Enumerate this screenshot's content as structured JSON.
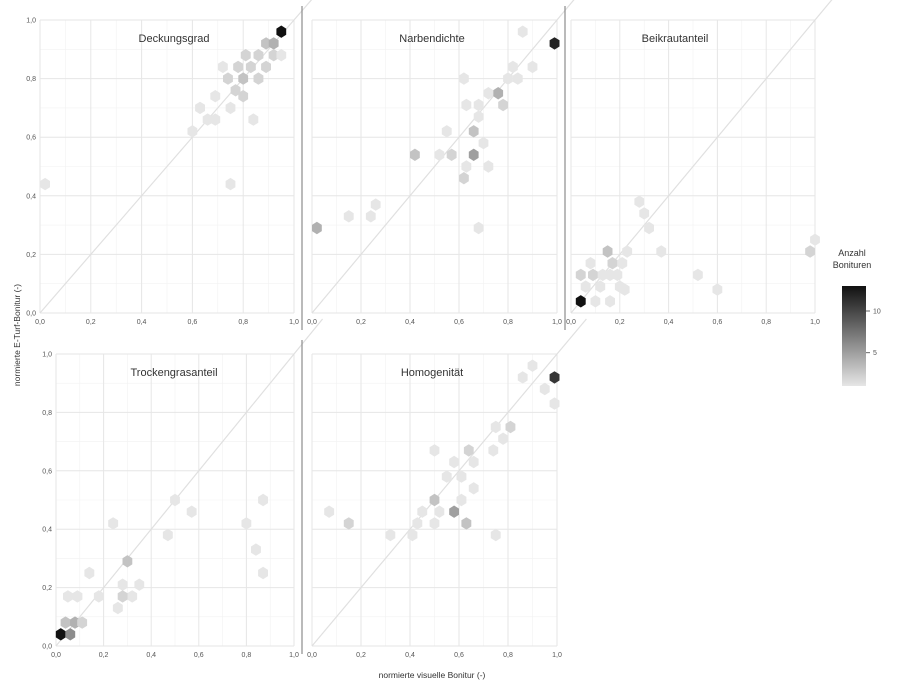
{
  "chart_data": {
    "type": "hexbin",
    "xlabel": "normierte visuelle Bonitur (-)",
    "ylabel": "normierte E-Turf-Bonitur (-)",
    "xlim": [
      0,
      1
    ],
    "ylim": [
      0,
      1
    ],
    "x_ticks": [
      "0,0",
      "0,2",
      "0,4",
      "0,6",
      "0,8",
      "1,0"
    ],
    "y_ticks": [
      "0,0",
      "0,2",
      "0,4",
      "0,6",
      "0,8",
      "1,0"
    ],
    "reference_line": "y = x",
    "legend": {
      "title_line1": "Anzahl",
      "title_line2": "Bonituren",
      "tick_labels": [
        "10",
        "5"
      ],
      "tick_values": [
        10,
        5
      ],
      "min": 1,
      "max": 13,
      "color_low": "#e6e6e6",
      "color_high": "#111111"
    },
    "panels": [
      {
        "title": "Deckungsgrad",
        "points": [
          [
            0.02,
            0.44,
            1
          ],
          [
            0.6,
            0.62,
            1
          ],
          [
            0.63,
            0.7,
            1
          ],
          [
            0.66,
            0.66,
            1
          ],
          [
            0.69,
            0.74,
            1
          ],
          [
            0.69,
            0.66,
            1
          ],
          [
            0.72,
            0.84,
            1
          ],
          [
            0.74,
            0.8,
            2
          ],
          [
            0.75,
            0.7,
            1
          ],
          [
            0.75,
            0.44,
            1
          ],
          [
            0.77,
            0.76,
            2
          ],
          [
            0.78,
            0.84,
            2
          ],
          [
            0.8,
            0.8,
            3
          ],
          [
            0.81,
            0.88,
            2
          ],
          [
            0.8,
            0.74,
            2
          ],
          [
            0.83,
            0.84,
            2
          ],
          [
            0.84,
            0.66,
            1
          ],
          [
            0.86,
            0.88,
            2
          ],
          [
            0.86,
            0.8,
            2
          ],
          [
            0.89,
            0.92,
            3
          ],
          [
            0.89,
            0.84,
            2
          ],
          [
            0.92,
            0.92,
            4
          ],
          [
            0.92,
            0.88,
            2
          ],
          [
            0.95,
            0.88,
            1
          ],
          [
            0.95,
            0.96,
            13
          ]
        ]
      },
      {
        "title": "Narbendichte",
        "points": [
          [
            0.02,
            0.29,
            4
          ],
          [
            0.15,
            0.33,
            1
          ],
          [
            0.24,
            0.33,
            1
          ],
          [
            0.26,
            0.37,
            1
          ],
          [
            0.42,
            0.54,
            3
          ],
          [
            0.52,
            0.54,
            1
          ],
          [
            0.55,
            0.62,
            1
          ],
          [
            0.57,
            0.54,
            2
          ],
          [
            0.62,
            0.46,
            2
          ],
          [
            0.63,
            0.5,
            1
          ],
          [
            0.62,
            0.8,
            1
          ],
          [
            0.63,
            0.71,
            1
          ],
          [
            0.66,
            0.54,
            5
          ],
          [
            0.66,
            0.62,
            3
          ],
          [
            0.68,
            0.71,
            1
          ],
          [
            0.68,
            0.67,
            1
          ],
          [
            0.72,
            0.75,
            1
          ],
          [
            0.76,
            0.75,
            4
          ],
          [
            0.78,
            0.71,
            2
          ],
          [
            0.8,
            0.8,
            1
          ],
          [
            0.82,
            0.84,
            1
          ],
          [
            0.84,
            0.8,
            1
          ],
          [
            0.86,
            0.96,
            1
          ],
          [
            0.9,
            0.84,
            1
          ],
          [
            0.68,
            0.29,
            1
          ],
          [
            0.99,
            0.92,
            12
          ],
          [
            0.72,
            0.5,
            1
          ],
          [
            0.7,
            0.58,
            1
          ]
        ]
      },
      {
        "title": "Beikrautanteil",
        "points": [
          [
            0.04,
            0.04,
            13
          ],
          [
            0.04,
            0.13,
            2
          ],
          [
            0.06,
            0.09,
            1
          ],
          [
            0.08,
            0.17,
            1
          ],
          [
            0.09,
            0.13,
            2
          ],
          [
            0.12,
            0.09,
            1
          ],
          [
            0.13,
            0.13,
            1
          ],
          [
            0.15,
            0.21,
            3
          ],
          [
            0.16,
            0.13,
            1
          ],
          [
            0.17,
            0.17,
            2
          ],
          [
            0.19,
            0.13,
            1
          ],
          [
            0.2,
            0.09,
            1
          ],
          [
            0.21,
            0.17,
            1
          ],
          [
            0.23,
            0.21,
            1
          ],
          [
            0.28,
            0.38,
            1
          ],
          [
            0.3,
            0.34,
            1
          ],
          [
            0.32,
            0.29,
            1
          ],
          [
            0.37,
            0.21,
            1
          ],
          [
            0.52,
            0.13,
            1
          ],
          [
            0.6,
            0.08,
            1
          ],
          [
            0.98,
            0.21,
            2
          ],
          [
            1.0,
            0.25,
            1
          ],
          [
            0.1,
            0.04,
            1
          ],
          [
            0.16,
            0.04,
            1
          ],
          [
            0.22,
            0.08,
            1
          ]
        ]
      },
      {
        "title": "Trockengrasanteil",
        "points": [
          [
            0.02,
            0.04,
            13
          ],
          [
            0.06,
            0.04,
            6
          ],
          [
            0.04,
            0.08,
            3
          ],
          [
            0.08,
            0.08,
            4
          ],
          [
            0.11,
            0.08,
            2
          ],
          [
            0.05,
            0.17,
            1
          ],
          [
            0.09,
            0.17,
            1
          ],
          [
            0.14,
            0.25,
            1
          ],
          [
            0.18,
            0.17,
            1
          ],
          [
            0.24,
            0.42,
            1
          ],
          [
            0.26,
            0.13,
            1
          ],
          [
            0.28,
            0.21,
            1
          ],
          [
            0.3,
            0.29,
            3
          ],
          [
            0.32,
            0.17,
            1
          ],
          [
            0.35,
            0.21,
            1
          ],
          [
            0.47,
            0.38,
            1
          ],
          [
            0.5,
            0.5,
            1
          ],
          [
            0.57,
            0.46,
            1
          ],
          [
            0.8,
            0.42,
            1
          ],
          [
            0.84,
            0.33,
            1
          ],
          [
            0.87,
            0.25,
            1
          ],
          [
            0.87,
            0.5,
            1
          ],
          [
            0.28,
            0.17,
            2
          ]
        ]
      },
      {
        "title": "Homogenität",
        "points": [
          [
            0.07,
            0.46,
            1
          ],
          [
            0.15,
            0.42,
            2
          ],
          [
            0.32,
            0.38,
            1
          ],
          [
            0.41,
            0.38,
            1
          ],
          [
            0.43,
            0.42,
            1
          ],
          [
            0.45,
            0.46,
            1
          ],
          [
            0.5,
            0.42,
            1
          ],
          [
            0.5,
            0.5,
            3
          ],
          [
            0.52,
            0.46,
            1
          ],
          [
            0.55,
            0.58,
            1
          ],
          [
            0.58,
            0.46,
            5
          ],
          [
            0.58,
            0.63,
            1
          ],
          [
            0.61,
            0.58,
            1
          ],
          [
            0.61,
            0.5,
            1
          ],
          [
            0.63,
            0.42,
            3
          ],
          [
            0.64,
            0.67,
            2
          ],
          [
            0.66,
            0.54,
            1
          ],
          [
            0.66,
            0.63,
            1
          ],
          [
            0.75,
            0.38,
            1
          ],
          [
            0.74,
            0.67,
            1
          ],
          [
            0.75,
            0.75,
            1
          ],
          [
            0.78,
            0.71,
            1
          ],
          [
            0.81,
            0.75,
            2
          ],
          [
            0.86,
            0.92,
            1
          ],
          [
            0.9,
            0.96,
            1
          ],
          [
            0.95,
            0.88,
            1
          ],
          [
            0.99,
            0.92,
            11
          ],
          [
            0.99,
            0.83,
            1
          ],
          [
            0.5,
            0.67,
            1
          ]
        ]
      }
    ]
  }
}
